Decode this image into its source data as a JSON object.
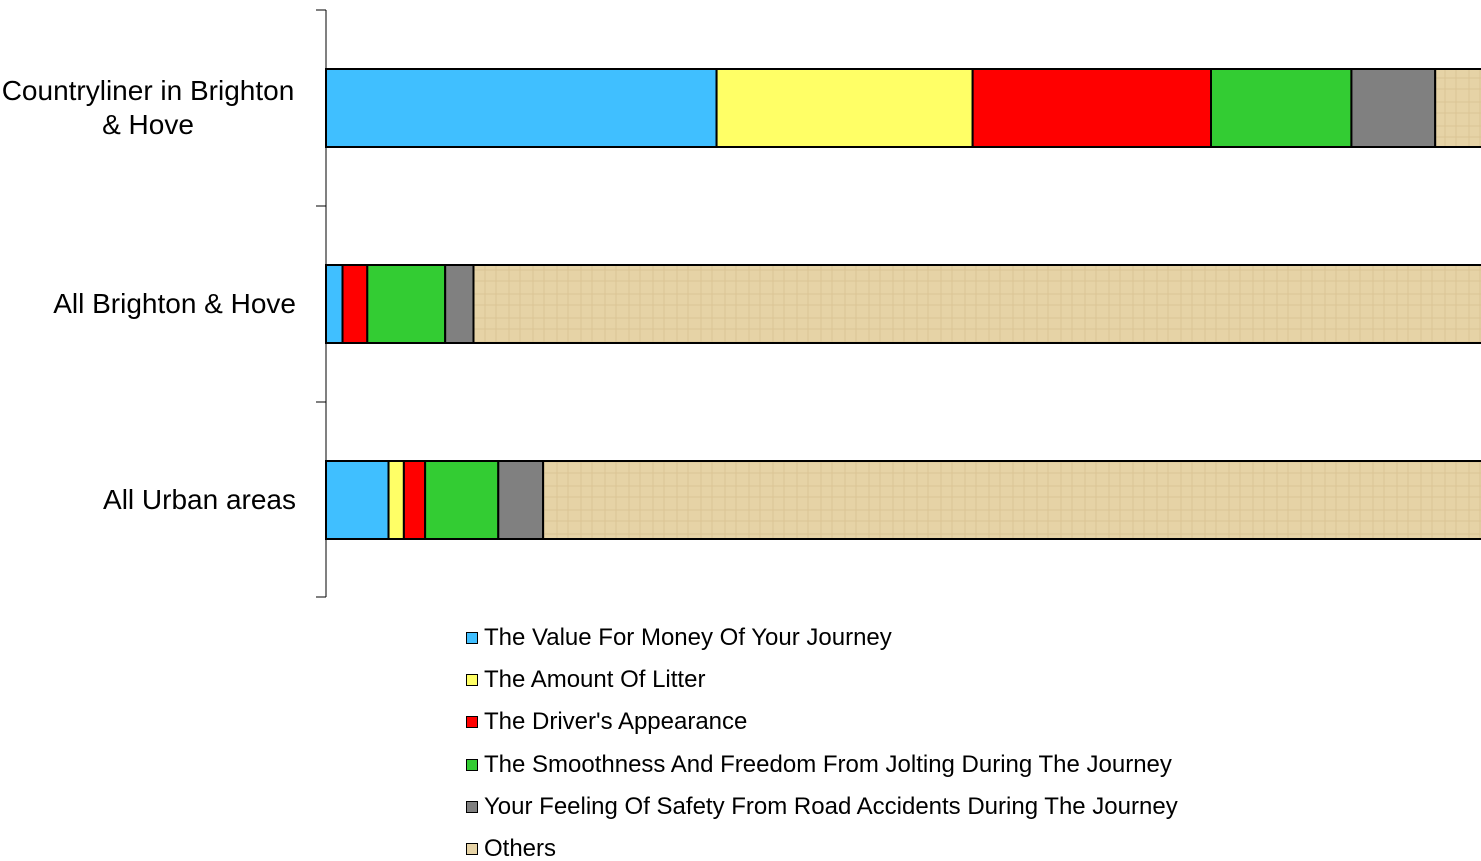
{
  "chart_data": {
    "type": "stacked-bar-horizontal",
    "categories": [
      "Countryliner in Brighton & Hove",
      "All Brighton & Hove",
      "All Urban areas"
    ],
    "xlim": [
      0,
      100
    ],
    "series": [
      {
        "name": "The Value For Money Of Your Journey",
        "color": "#40bfff",
        "values": [
          33.1,
          1.4,
          5.3
        ]
      },
      {
        "name": "The Amount Of Litter",
        "color": "#ffff66",
        "values": [
          21.7,
          0,
          1.3
        ]
      },
      {
        "name": "The Driver's Appearance",
        "color": "#ff0000",
        "values": [
          20.2,
          2.1,
          1.8
        ]
      },
      {
        "name": "The Smoothness And Freedom From Jolting During The Journey",
        "color": "#33cc33",
        "values": [
          11.9,
          6.6,
          6.2
        ]
      },
      {
        "name": "Your Feeling Of Safety From Road Accidents During The Journey",
        "color": "#808080",
        "values": [
          7.1,
          2.4,
          3.8
        ]
      },
      {
        "name": "Others",
        "color": "#e6d3a6",
        "values": [
          6.0,
          87.5,
          81.6
        ]
      }
    ],
    "legend": "bottom"
  }
}
